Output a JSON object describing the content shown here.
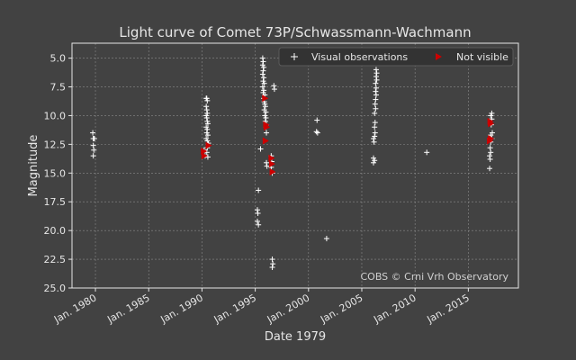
{
  "chart_data": {
    "type": "scatter",
    "title": "Light curve of Comet 73P/Schwassmann-Wachmann",
    "xlabel": "Date 1979",
    "ylabel": "Magnitude",
    "x_unit": "year",
    "xlim": [
      1977.8,
      2019.7
    ],
    "ylim": [
      25.0,
      3.7
    ],
    "y_inverted": true,
    "grid": true,
    "legend_position": "top-right",
    "x_ticks": [
      {
        "value": 1980,
        "label": "Jan. 1980"
      },
      {
        "value": 1985,
        "label": "Jan. 1985"
      },
      {
        "value": 1990,
        "label": "Jan. 1990"
      },
      {
        "value": 1995,
        "label": "Jan. 1995"
      },
      {
        "value": 2000,
        "label": "Jan. 2000"
      },
      {
        "value": 2005,
        "label": "Jan. 2005"
      },
      {
        "value": 2010,
        "label": "Jan. 2010"
      },
      {
        "value": 2015,
        "label": "Jan. 2015"
      }
    ],
    "y_ticks": [
      {
        "value": 5.0,
        "label": "5.0"
      },
      {
        "value": 7.5,
        "label": "7.5"
      },
      {
        "value": 10.0,
        "label": "10.0"
      },
      {
        "value": 12.5,
        "label": "12.5"
      },
      {
        "value": 15.0,
        "label": "15.0"
      },
      {
        "value": 17.5,
        "label": "17.5"
      },
      {
        "value": 20.0,
        "label": "20.0"
      },
      {
        "value": 22.5,
        "label": "22.5"
      },
      {
        "value": 25.0,
        "label": "25.0"
      }
    ],
    "annotation": "COBS © Crni Vrh Observatory",
    "series": [
      {
        "name": "Visual observations",
        "marker": "plus",
        "color": "#ffffff",
        "points": [
          [
            1979.75,
            11.5
          ],
          [
            1979.8,
            12.0
          ],
          [
            1979.85,
            12.0
          ],
          [
            1979.9,
            12.0
          ],
          [
            1979.8,
            12.6
          ],
          [
            1979.85,
            13.0
          ],
          [
            1979.8,
            13.5
          ],
          [
            1990.2,
            13.0
          ],
          [
            1990.3,
            13.5
          ],
          [
            1990.4,
            8.5
          ],
          [
            1990.45,
            8.5
          ],
          [
            1990.5,
            8.7
          ],
          [
            1990.4,
            9.2
          ],
          [
            1990.45,
            9.5
          ],
          [
            1990.5,
            9.8
          ],
          [
            1990.4,
            10.0
          ],
          [
            1990.45,
            10.2
          ],
          [
            1990.5,
            10.5
          ],
          [
            1990.55,
            10.7
          ],
          [
            1990.4,
            11.0
          ],
          [
            1990.5,
            11.2
          ],
          [
            1990.45,
            11.5
          ],
          [
            1990.55,
            11.7
          ],
          [
            1990.4,
            12.0
          ],
          [
            1990.5,
            12.2
          ],
          [
            1990.6,
            12.4
          ],
          [
            1990.5,
            12.8
          ],
          [
            1990.45,
            13.2
          ],
          [
            1990.55,
            13.6
          ],
          [
            1995.3,
            16.5
          ],
          [
            1995.2,
            18.2
          ],
          [
            1995.25,
            18.5
          ],
          [
            1995.2,
            19.2
          ],
          [
            1995.3,
            19.5
          ],
          [
            1995.5,
            12.9
          ],
          [
            1995.7,
            5.0
          ],
          [
            1995.75,
            5.3
          ],
          [
            1995.7,
            5.6
          ],
          [
            1995.8,
            5.8
          ],
          [
            1995.75,
            6.1
          ],
          [
            1995.7,
            6.4
          ],
          [
            1995.8,
            6.7
          ],
          [
            1995.75,
            7.0
          ],
          [
            1995.85,
            7.2
          ],
          [
            1995.7,
            7.5
          ],
          [
            1995.8,
            7.8
          ],
          [
            1995.75,
            8.0
          ],
          [
            1995.9,
            8.2
          ],
          [
            1995.8,
            8.5
          ],
          [
            1995.85,
            8.8
          ],
          [
            1995.9,
            9.0
          ],
          [
            1995.95,
            9.2
          ],
          [
            1995.85,
            9.5
          ],
          [
            1996.0,
            9.7
          ],
          [
            1995.9,
            10.0
          ],
          [
            1996.0,
            10.2
          ],
          [
            1995.95,
            10.5
          ],
          [
            1996.05,
            10.8
          ],
          [
            1996.0,
            11.0
          ],
          [
            1996.05,
            11.5
          ],
          [
            1996.05,
            14.1
          ],
          [
            1996.1,
            14.4
          ],
          [
            1996.5,
            13.5
          ],
          [
            1996.55,
            14.0
          ],
          [
            1996.5,
            14.5
          ],
          [
            1996.6,
            15.0
          ],
          [
            1996.75,
            7.4
          ],
          [
            1996.8,
            7.7
          ],
          [
            1996.6,
            22.5
          ],
          [
            1996.65,
            22.9
          ],
          [
            1996.6,
            23.2
          ],
          [
            2000.8,
            10.4
          ],
          [
            2000.75,
            11.4
          ],
          [
            2000.85,
            11.5
          ],
          [
            2001.7,
            20.7
          ],
          [
            2006.1,
            13.7
          ],
          [
            2006.2,
            13.9
          ],
          [
            2006.1,
            14.1
          ],
          [
            2006.15,
            12.3
          ],
          [
            2006.1,
            12.0
          ],
          [
            2006.2,
            11.8
          ],
          [
            2006.25,
            11.5
          ],
          [
            2006.2,
            11.0
          ],
          [
            2006.25,
            10.6
          ],
          [
            2006.2,
            9.8
          ],
          [
            2006.3,
            9.4
          ],
          [
            2006.25,
            9.0
          ],
          [
            2006.3,
            8.6
          ],
          [
            2006.35,
            8.2
          ],
          [
            2006.3,
            7.9
          ],
          [
            2006.35,
            7.6
          ],
          [
            2006.3,
            7.2
          ],
          [
            2006.4,
            6.9
          ],
          [
            2006.35,
            6.6
          ],
          [
            2006.4,
            6.3
          ],
          [
            2006.35,
            6.0
          ],
          [
            2011.1,
            13.2
          ],
          [
            2017.0,
            14.6
          ],
          [
            2017.05,
            13.8
          ],
          [
            2017.0,
            13.5
          ],
          [
            2017.1,
            13.2
          ],
          [
            2017.05,
            12.8
          ],
          [
            2017.1,
            12.3
          ],
          [
            2017.2,
            12.0
          ],
          [
            2017.1,
            11.7
          ],
          [
            2017.25,
            11.5
          ],
          [
            2017.15,
            10.8
          ],
          [
            2017.2,
            10.3
          ],
          [
            2017.1,
            10.0
          ],
          [
            2017.2,
            9.8
          ]
        ]
      },
      {
        "name": "Not visible",
        "marker": "triangle-right",
        "color": "#cc0000",
        "points": [
          [
            1990.15,
            13.1
          ],
          [
            1990.2,
            13.5
          ],
          [
            1990.6,
            12.6
          ],
          [
            1995.9,
            8.5
          ],
          [
            1996.0,
            10.8
          ],
          [
            1996.05,
            11.0
          ],
          [
            1995.95,
            12.2
          ],
          [
            1996.5,
            13.7
          ],
          [
            1996.55,
            14.2
          ],
          [
            1996.6,
            14.9
          ],
          [
            2017.05,
            10.5
          ],
          [
            2017.1,
            10.7
          ],
          [
            2017.0,
            12.2
          ],
          [
            2017.1,
            12.0
          ]
        ]
      }
    ]
  }
}
